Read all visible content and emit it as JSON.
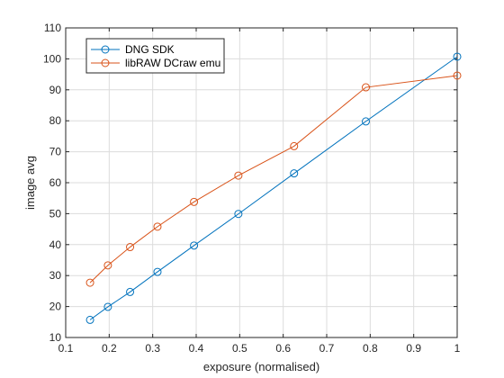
{
  "chart_data": {
    "type": "line",
    "xlabel": "exposure (normalised)",
    "ylabel": "image avg",
    "xlim": [
      0.1,
      1.0
    ],
    "ylim": [
      10,
      110
    ],
    "xticks": [
      0.1,
      0.2,
      0.3,
      0.4,
      0.5,
      0.6,
      0.7,
      0.8,
      0.9,
      1.0
    ],
    "xtick_labels": [
      "0.1",
      "0.2",
      "0.3",
      "0.4",
      "0.5",
      "0.6",
      "0.7",
      "0.8",
      "0.9",
      "1"
    ],
    "yticks": [
      10,
      20,
      30,
      40,
      50,
      60,
      70,
      80,
      90,
      100,
      110
    ],
    "ytick_labels": [
      "10",
      "20",
      "30",
      "40",
      "50",
      "60",
      "70",
      "80",
      "90",
      "100",
      "110"
    ],
    "grid": true,
    "legend_position": "top-left",
    "series": [
      {
        "name": "DNG SDK",
        "color": "#0072BD",
        "marker": "circle",
        "x": [
          0.156,
          0.197,
          0.248,
          0.311,
          0.395,
          0.497,
          0.625,
          0.79,
          1.0
        ],
        "y": [
          15.7,
          19.9,
          24.7,
          31.2,
          39.7,
          49.9,
          63.0,
          79.8,
          100.7
        ]
      },
      {
        "name": "libRAW DCraw emu",
        "color": "#D95319",
        "marker": "circle",
        "x": [
          0.156,
          0.197,
          0.248,
          0.311,
          0.395,
          0.497,
          0.625,
          0.79,
          1.0
        ],
        "y": [
          27.7,
          33.3,
          39.2,
          45.8,
          53.8,
          62.3,
          71.8,
          90.8,
          94.6
        ]
      }
    ]
  }
}
